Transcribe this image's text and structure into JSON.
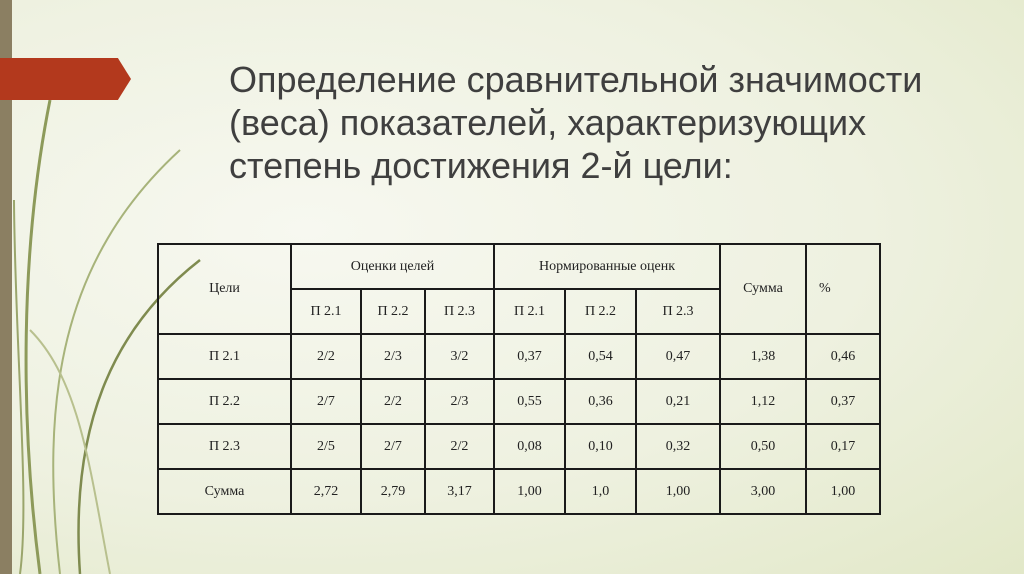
{
  "title": [
    "Определение сравнительной значимости",
    "(веса) показателей, характеризующих",
    "степень достижения 2-й цели:"
  ],
  "table": {
    "goals_header": "Цели",
    "group1": "Оценки целей",
    "group2": "Нормированные оценк",
    "sum_header": "Сумма",
    "pct_header": "%",
    "sub": [
      "П 2.1",
      "П 2.2",
      "П 2.3",
      "П 2.1",
      "П 2.2",
      "П 2.3"
    ],
    "rows": [
      [
        "П 2.1",
        "2/2",
        "2/3",
        "3/2",
        "0,37",
        "0,54",
        "0,47",
        "1,38",
        "0,46"
      ],
      [
        "П 2.2",
        "2/7",
        "2/2",
        "2/3",
        "0,55",
        "0,36",
        "0,21",
        "1,12",
        "0,37"
      ],
      [
        "П 2.3",
        "2/5",
        "2/7",
        "2/2",
        "0,08",
        "0,10",
        "0,32",
        "0,50",
        "0,17"
      ],
      [
        "Сумма",
        "2,72",
        "2,79",
        "3,17",
        "1,00",
        "1,0",
        "1,00",
        "3,00",
        "1,00"
      ]
    ]
  },
  "colors": {
    "accent": "#b3391d",
    "stripe": "#8b7f62"
  }
}
